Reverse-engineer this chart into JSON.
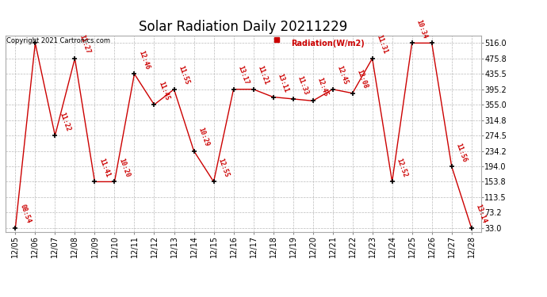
{
  "title": "Solar Radiation Daily 20211229",
  "copyright": "Copyright 2021 Cartronics.com",
  "background_color": "#ffffff",
  "plot_bg_color": "#ffffff",
  "grid_color": "#bbbbbb",
  "line_color": "#cc0000",
  "label_color": "#cc0000",
  "text_color": "#000000",
  "ylim_min": 33.0,
  "ylim_max": 516.0,
  "yticks": [
    33.0,
    73.2,
    113.5,
    153.8,
    194.0,
    234.2,
    274.5,
    314.8,
    355.0,
    395.2,
    435.5,
    475.8,
    516.0
  ],
  "ytick_labels": [
    "33.0",
    "73.2",
    "113.5",
    "153.8",
    "194.0",
    "234.2",
    "274.5",
    "314.8",
    "355.0",
    "395.2",
    "435.5",
    "475.8",
    "516.0"
  ],
  "dates": [
    "12/05",
    "12/06",
    "12/07",
    "12/08",
    "12/09",
    "12/10",
    "12/11",
    "12/12",
    "12/13",
    "12/14",
    "12/15",
    "12/16",
    "12/17",
    "12/18",
    "12/19",
    "12/20",
    "12/21",
    "12/22",
    "12/23",
    "12/24",
    "12/25",
    "12/26",
    "12/27",
    "12/28"
  ],
  "values": [
    33.0,
    516.0,
    274.5,
    475.8,
    153.8,
    153.8,
    435.5,
    355.0,
    395.2,
    234.2,
    153.8,
    395.2,
    395.2,
    375.0,
    370.0,
    365.0,
    395.2,
    385.0,
    475.8,
    153.8,
    516.0,
    516.0,
    194.0,
    33.0
  ],
  "point_labels": [
    "08:54",
    "",
    "11:22",
    "11:27",
    "11:41",
    "10:20",
    "12:46",
    "11:45",
    "11:55",
    "10:29",
    "12:55",
    "13:17",
    "11:21",
    "13:11",
    "11:33",
    "12:45",
    "12:45",
    "12:08",
    "11:31",
    "12:52",
    "10:34",
    "",
    "11:56",
    "13:14"
  ],
  "show_label": [
    true,
    false,
    true,
    true,
    true,
    true,
    true,
    true,
    true,
    true,
    true,
    true,
    true,
    true,
    true,
    true,
    true,
    true,
    true,
    true,
    true,
    false,
    true,
    true
  ],
  "legend_text": "Radiation(W/m2)",
  "title_fontsize": 12,
  "label_fontsize": 6,
  "tick_fontsize": 7,
  "copyright_fontsize": 6
}
